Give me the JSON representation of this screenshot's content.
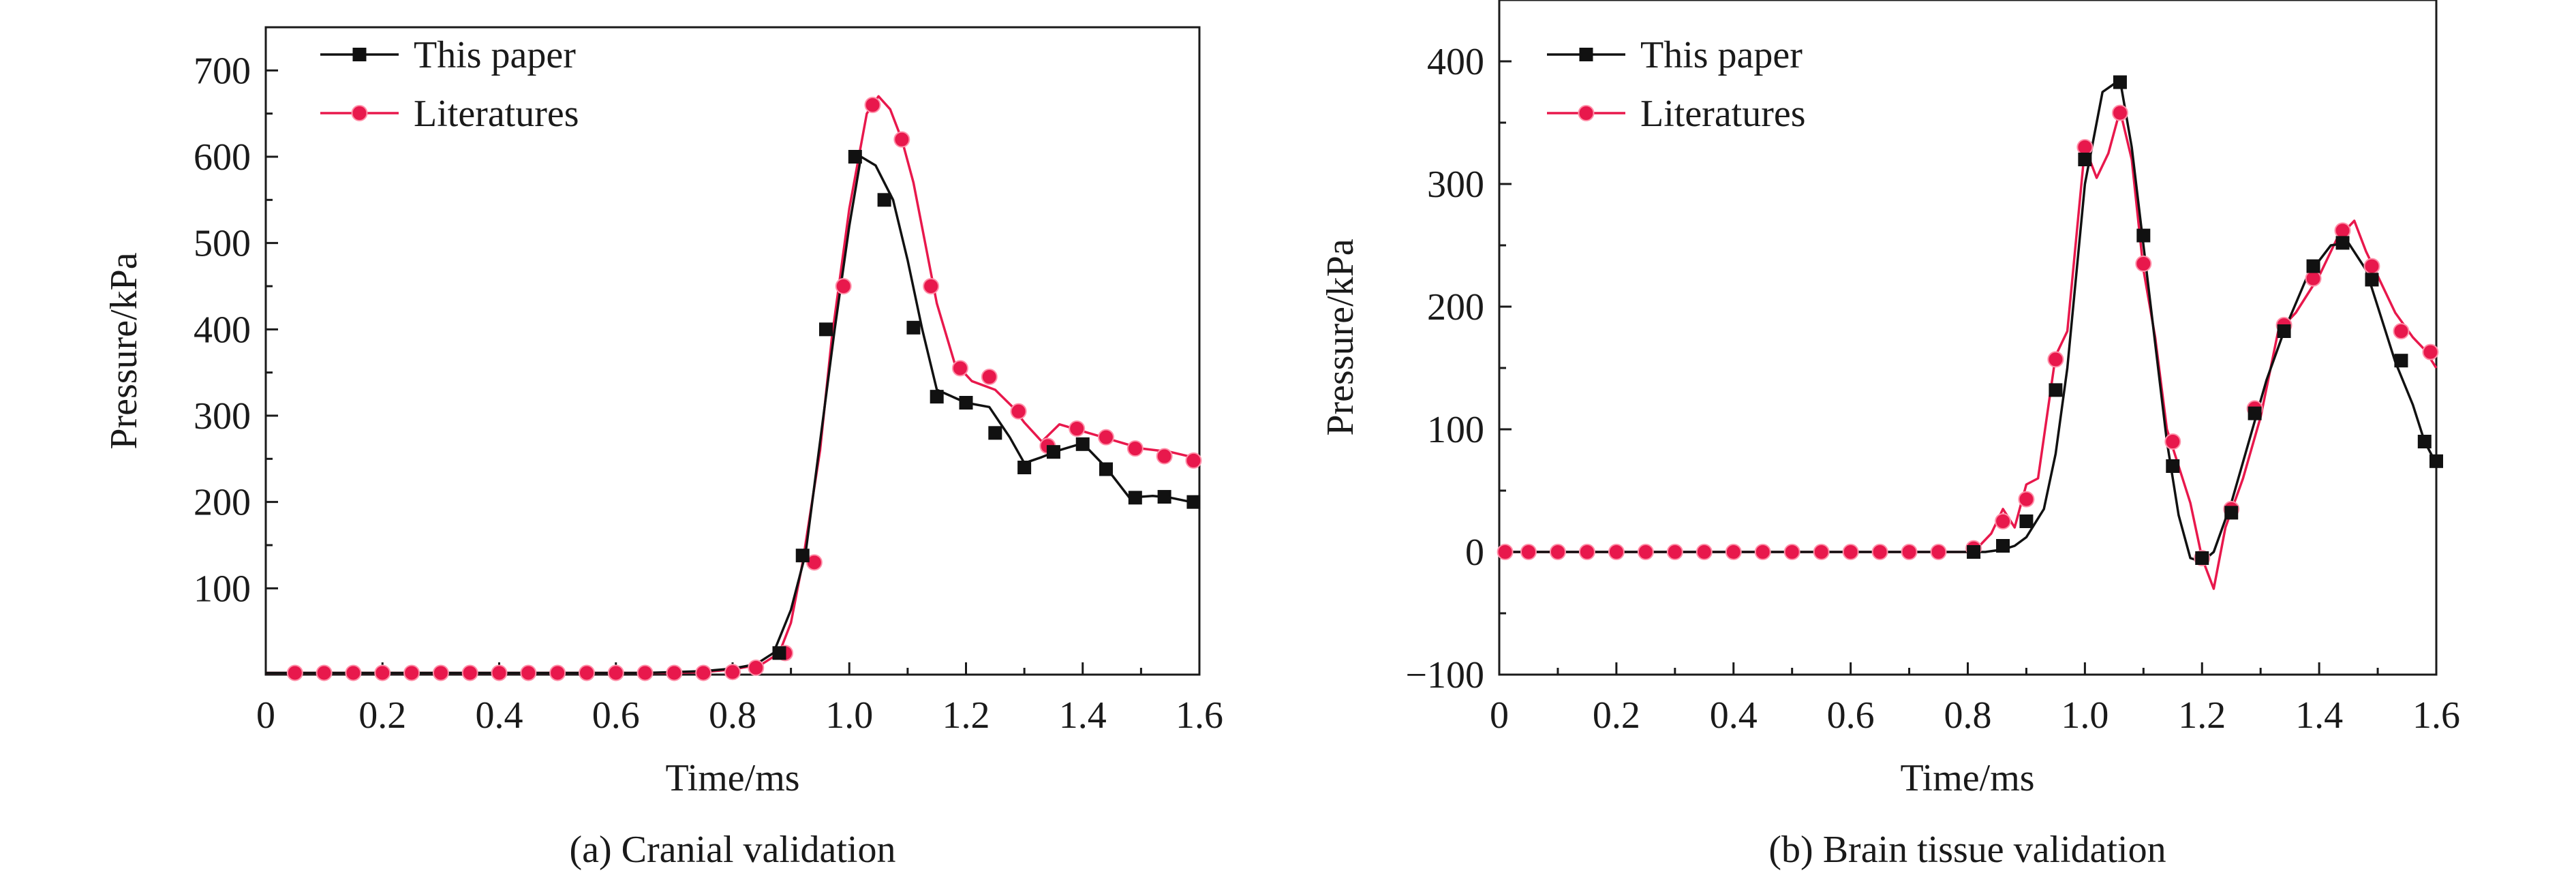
{
  "chart_data": [
    {
      "type": "line",
      "caption": "(a) Cranial validation",
      "xlabel": "Time/ms",
      "ylabel": "Pressure/kPa",
      "xlim": [
        0,
        1.6
      ],
      "ylim": [
        0,
        750
      ],
      "xticks": [
        0,
        0.2,
        0.4,
        0.6,
        0.8,
        1.0,
        1.2,
        1.4,
        1.6
      ],
      "xtick_labels": [
        "0",
        "0.2",
        "0.4",
        "0.6",
        "0.8",
        "1.0",
        "1.2",
        "1.4",
        "1.6"
      ],
      "yticks": [
        100,
        200,
        300,
        400,
        500,
        600,
        700
      ],
      "ytick_labels": [
        "100",
        "200",
        "300",
        "400",
        "500",
        "600",
        "700"
      ],
      "legend_position": "top-left",
      "grid": false,
      "series": [
        {
          "name": "This paper",
          "color": "#111111",
          "marker": "square",
          "x": [
            0,
            0.05,
            0.1,
            0.15,
            0.2,
            0.25,
            0.3,
            0.35,
            0.4,
            0.45,
            0.5,
            0.55,
            0.6,
            0.65,
            0.7,
            0.75,
            0.8,
            0.84,
            0.87,
            0.9,
            0.925,
            0.95,
            0.975,
            1.0,
            1.02,
            1.045,
            1.075,
            1.1,
            1.125,
            1.15,
            1.2,
            1.24,
            1.275,
            1.3,
            1.33,
            1.36,
            1.4,
            1.44,
            1.48,
            1.52,
            1.55,
            1.6
          ],
          "y": [
            2,
            2,
            2,
            2,
            2,
            2,
            2,
            2,
            2,
            2,
            2,
            2,
            2,
            2,
            3,
            4,
            7,
            12,
            25,
            75,
            140,
            270,
            400,
            520,
            600,
            590,
            550,
            480,
            400,
            330,
            315,
            310,
            275,
            245,
            252,
            260,
            268,
            240,
            205,
            207,
            205,
            198
          ],
          "markers_x": [
            0.88,
            0.92,
            0.96,
            1.01,
            1.06,
            1.11,
            1.15,
            1.2,
            1.25,
            1.3,
            1.35,
            1.4,
            1.44,
            1.49,
            1.54,
            1.59
          ],
          "markers_y": [
            25,
            138,
            400,
            600,
            550,
            402,
            322,
            315,
            280,
            240,
            258,
            267,
            238,
            205,
            206,
            200
          ]
        },
        {
          "name": "Literatures",
          "color": "#e8184c",
          "marker": "circle",
          "x": [
            0,
            0.05,
            0.1,
            0.15,
            0.2,
            0.25,
            0.3,
            0.35,
            0.4,
            0.45,
            0.5,
            0.55,
            0.6,
            0.65,
            0.7,
            0.75,
            0.8,
            0.85,
            0.88,
            0.9,
            0.92,
            0.95,
            0.97,
            1.0,
            1.03,
            1.05,
            1.07,
            1.09,
            1.11,
            1.13,
            1.15,
            1.18,
            1.21,
            1.25,
            1.28,
            1.3,
            1.33,
            1.36,
            1.4,
            1.45,
            1.5,
            1.55,
            1.6
          ],
          "y": [
            2,
            2,
            2,
            2,
            2,
            2,
            2,
            2,
            2,
            2,
            2,
            2,
            2,
            2,
            2,
            3,
            6,
            12,
            25,
            60,
            130,
            260,
            390,
            540,
            650,
            670,
            655,
            620,
            570,
            500,
            430,
            362,
            340,
            330,
            310,
            292,
            270,
            290,
            282,
            272,
            262,
            258,
            250
          ],
          "markers_x": [
            0.05,
            0.1,
            0.15,
            0.2,
            0.25,
            0.3,
            0.35,
            0.4,
            0.45,
            0.5,
            0.55,
            0.6,
            0.65,
            0.7,
            0.75,
            0.8,
            0.84,
            0.89,
            0.94,
            0.99,
            1.04,
            1.09,
            1.14,
            1.19,
            1.24,
            1.29,
            1.34,
            1.39,
            1.44,
            1.49,
            1.54,
            1.59
          ],
          "markers_y": [
            2,
            2,
            2,
            2,
            2,
            2,
            2,
            2,
            2,
            2,
            2,
            2,
            2,
            2,
            2,
            3,
            8,
            25,
            130,
            450,
            660,
            620,
            450,
            355,
            345,
            305,
            265,
            285,
            275,
            262,
            253,
            248
          ]
        }
      ]
    },
    {
      "type": "line",
      "caption": "(b) Brain tissue validation",
      "xlabel": "Time/ms",
      "ylabel": "Pressure/kPa",
      "xlim": [
        0,
        1.6
      ],
      "ylim": [
        -100,
        450
      ],
      "xticks": [
        0,
        0.2,
        0.4,
        0.6,
        0.8,
        1.0,
        1.2,
        1.4,
        1.6
      ],
      "xtick_labels": [
        "0",
        "0.2",
        "0.4",
        "0.6",
        "0.8",
        "1.0",
        "1.2",
        "1.4",
        "1.6"
      ],
      "yticks": [
        -100,
        0,
        100,
        200,
        300,
        400
      ],
      "ytick_labels": [
        "−100",
        "0",
        "100",
        "200",
        "300",
        "400"
      ],
      "legend_position": "top-left",
      "grid": false,
      "series": [
        {
          "name": "This paper",
          "color": "#111111",
          "marker": "square",
          "x": [
            0,
            0.1,
            0.2,
            0.3,
            0.4,
            0.5,
            0.6,
            0.7,
            0.8,
            0.83,
            0.86,
            0.88,
            0.9,
            0.93,
            0.95,
            0.97,
            1.0,
            1.03,
            1.06,
            1.08,
            1.1,
            1.12,
            1.14,
            1.16,
            1.18,
            1.2,
            1.22,
            1.25,
            1.28,
            1.31,
            1.34,
            1.38,
            1.42,
            1.45,
            1.48,
            1.5,
            1.53,
            1.56,
            1.58,
            1.6
          ],
          "y": [
            0,
            0,
            0,
            0,
            0,
            0,
            0,
            0,
            0,
            0,
            2,
            5,
            12,
            35,
            80,
            150,
            300,
            375,
            385,
            330,
            250,
            170,
            90,
            30,
            -5,
            -8,
            0,
            40,
            90,
            140,
            180,
            225,
            250,
            252,
            230,
            200,
            155,
            120,
            90,
            72
          ],
          "markers_x": [
            0.81,
            0.86,
            0.9,
            0.95,
            1.0,
            1.06,
            1.1,
            1.15,
            1.2,
            1.25,
            1.29,
            1.34,
            1.39,
            1.44,
            1.49,
            1.54,
            1.58,
            1.6
          ],
          "markers_y": [
            0,
            5,
            25,
            132,
            320,
            383,
            258,
            70,
            -5,
            32,
            113,
            180,
            233,
            252,
            222,
            156,
            90,
            74
          ]
        },
        {
          "name": "Literatures",
          "color": "#e8184c",
          "marker": "circle",
          "x": [
            0,
            0.1,
            0.2,
            0.3,
            0.4,
            0.5,
            0.6,
            0.7,
            0.8,
            0.82,
            0.84,
            0.86,
            0.88,
            0.9,
            0.92,
            0.95,
            0.97,
            1.0,
            1.02,
            1.04,
            1.06,
            1.08,
            1.1,
            1.12,
            1.14,
            1.16,
            1.18,
            1.2,
            1.22,
            1.24,
            1.27,
            1.3,
            1.33,
            1.36,
            1.4,
            1.43,
            1.46,
            1.48,
            1.5,
            1.53,
            1.56,
            1.58,
            1.6
          ],
          "y": [
            0,
            0,
            0,
            0,
            0,
            0,
            0,
            0,
            0,
            5,
            15,
            35,
            20,
            55,
            60,
            160,
            180,
            330,
            305,
            325,
            360,
            320,
            230,
            175,
            100,
            70,
            40,
            -5,
            -30,
            20,
            60,
            110,
            180,
            195,
            225,
            255,
            270,
            245,
            225,
            195,
            175,
            165,
            150
          ],
          "markers_x": [
            0.01,
            0.05,
            0.1,
            0.15,
            0.2,
            0.25,
            0.3,
            0.35,
            0.4,
            0.45,
            0.5,
            0.55,
            0.6,
            0.65,
            0.7,
            0.75,
            0.81,
            0.86,
            0.9,
            0.95,
            1.0,
            1.06,
            1.1,
            1.15,
            1.2,
            1.25,
            1.29,
            1.34,
            1.39,
            1.44,
            1.49,
            1.54,
            1.59
          ],
          "markers_y": [
            0,
            0,
            0,
            0,
            0,
            0,
            0,
            0,
            0,
            0,
            0,
            0,
            0,
            0,
            0,
            0,
            3,
            25,
            43,
            157,
            330,
            358,
            235,
            90,
            -5,
            35,
            117,
            185,
            223,
            262,
            233,
            180,
            163
          ]
        }
      ]
    }
  ]
}
